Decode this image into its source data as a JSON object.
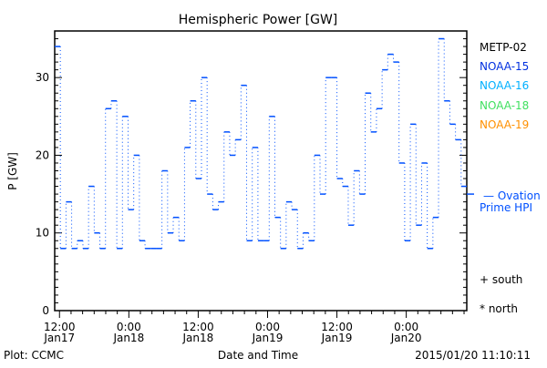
{
  "chart_data": {
    "type": "line",
    "title": "Hemispheric Power [GW]",
    "xlabel": "Date and Time",
    "ylabel": "P [GW]",
    "ylim": [
      0,
      36
    ],
    "yticks": [
      0,
      10,
      20,
      30
    ],
    "xticks": [
      {
        "h": 0.83,
        "top": "12:00",
        "bottom": "Jan17"
      },
      {
        "h": 12.83,
        "top": "0:00",
        "bottom": "Jan18"
      },
      {
        "h": 24.83,
        "top": "12:00",
        "bottom": "Jan18"
      },
      {
        "h": 36.83,
        "top": "0:00",
        "bottom": "Jan19"
      },
      {
        "h": 48.83,
        "top": "12:00",
        "bottom": "Jan19"
      },
      {
        "h": 60.83,
        "top": "0:00",
        "bottom": "Jan20"
      }
    ],
    "xrange_hours": [
      0,
      71.3
    ],
    "series": [
      {
        "name": "NOAA-15",
        "color": "#0050ff",
        "values": [
          34,
          8,
          14,
          8,
          9,
          8,
          16,
          10,
          8,
          26,
          27,
          8,
          25,
          13,
          20,
          9,
          8,
          8,
          8,
          18,
          10,
          12,
          9,
          21,
          27,
          17,
          30,
          15,
          13,
          14,
          23,
          20,
          22,
          29,
          9,
          21,
          9,
          9,
          25,
          12,
          8,
          14,
          13,
          8,
          10,
          9,
          20,
          15,
          30,
          30,
          17,
          16,
          11,
          18,
          15,
          28,
          23,
          26,
          31,
          33,
          32,
          19,
          9,
          24,
          11,
          19,
          8,
          12,
          35,
          27,
          24,
          22,
          16
        ]
      }
    ],
    "ovation": {
      "value": 15,
      "color": "#0050ff"
    },
    "legend": {
      "placement": "right",
      "entries": [
        {
          "label": "METP-02",
          "color": "#000000"
        },
        {
          "label": "NOAA-15",
          "color": "#0030e0"
        },
        {
          "label": "NOAA-16",
          "color": "#00b0ff"
        },
        {
          "label": "NOAA-18",
          "color": "#40e060"
        },
        {
          "label": "NOAA-19",
          "color": "#ff9000"
        }
      ],
      "ovation_label_1": "— Ovation",
      "ovation_label_2": "Prime HPI",
      "south": "+ south",
      "north": "* north"
    },
    "footer": {
      "left": "Plot: CCMC",
      "right": "2015/01/20 11:10:11"
    }
  }
}
